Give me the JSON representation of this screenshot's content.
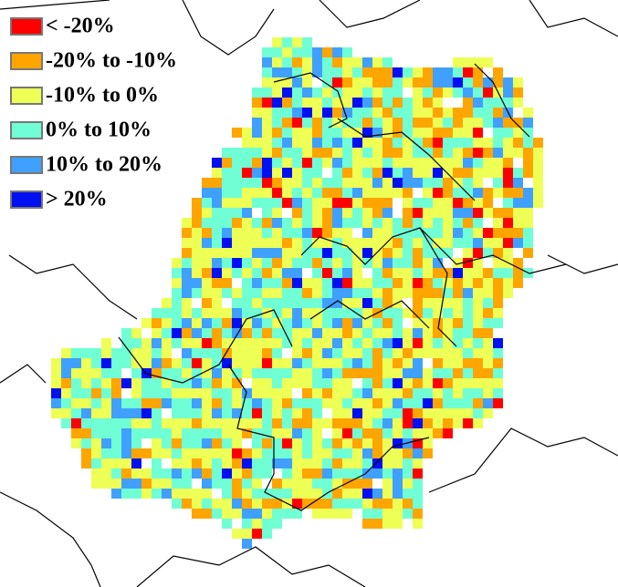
{
  "legend": {
    "items": [
      {
        "label": "< -20%",
        "color": "#ff0000"
      },
      {
        "label": "-20% to -10%",
        "color": "#ffa500"
      },
      {
        "label": "-10% to 0%",
        "color": "#eeff55"
      },
      {
        "label": "0% to 10%",
        "color": "#70ffd4"
      },
      {
        "label": "10% to 20%",
        "color": "#3fa0ff"
      },
      {
        "label": "> 20%",
        "color": "#0010f0"
      }
    ]
  }
}
